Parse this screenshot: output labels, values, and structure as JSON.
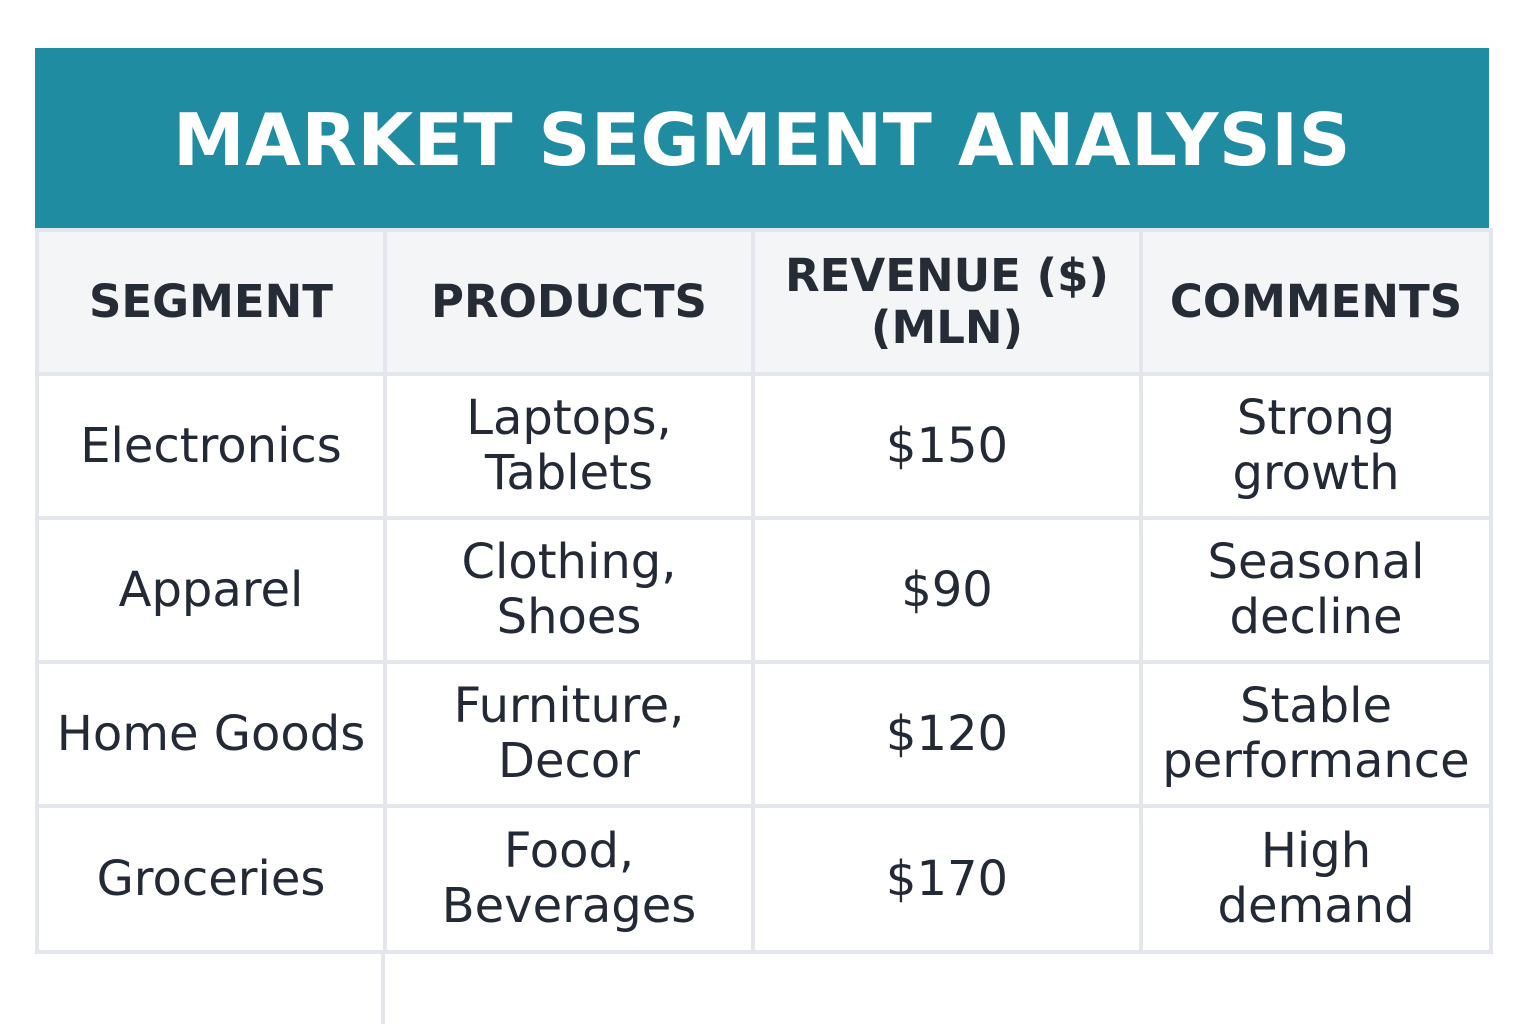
{
  "title": "MARKET SEGMENT ANALYSIS",
  "colors": {
    "banner": "#1f8ca1",
    "header_row": "#f4f5f7",
    "grid": "#e3e6ea",
    "text": "#232a36"
  },
  "table": {
    "headers": {
      "segment": "SEGMENT",
      "products": "PRODUCTS",
      "revenue_line1": "REVENUE ($)",
      "revenue_line2": "(MLN)",
      "comments": "COMMENTS"
    },
    "rows": [
      {
        "segment": "Electronics",
        "products_line1": "Laptops,",
        "products_line2": "Tablets",
        "revenue": "$150",
        "comments_line1": "Strong",
        "comments_line2": "growth"
      },
      {
        "segment": "Apparel",
        "products_line1": "Clothing,",
        "products_line2": "Shoes",
        "revenue": "$90",
        "comments_line1": "Seasonal",
        "comments_line2": "decline"
      },
      {
        "segment": "Home Goods",
        "products_line1": "Furniture,",
        "products_line2": "Decor",
        "revenue": "$120",
        "comments_line1": "Stable",
        "comments_line2": "performance"
      },
      {
        "segment": "Groceries",
        "products_line1": "Food,",
        "products_line2": "Beverages",
        "revenue": "$170",
        "comments_line1": "High",
        "comments_line2": "demand"
      }
    ]
  }
}
